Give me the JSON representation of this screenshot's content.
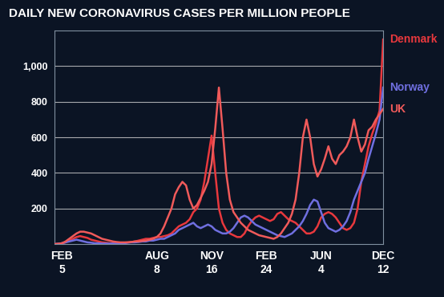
{
  "chart_data": {
    "type": "line",
    "title": "DAILY NEW CORONAVIRUS CASES PER MILLION PEOPLE",
    "categories": [
      null,
      null,
      "FEB\n5",
      null,
      null,
      null,
      null,
      null,
      null,
      null,
      null,
      null,
      null,
      null,
      null,
      null,
      null,
      null,
      null,
      null,
      null,
      null,
      null,
      null,
      null,
      null,
      null,
      null,
      "AUG\n8",
      null,
      null,
      null,
      null,
      null,
      null,
      null,
      null,
      null,
      null,
      null,
      null,
      null,
      null,
      "NOV\n16",
      null,
      null,
      null,
      null,
      null,
      null,
      null,
      null,
      null,
      null,
      null,
      null,
      null,
      null,
      "FEB\n24",
      null,
      null,
      null,
      null,
      null,
      null,
      null,
      null,
      null,
      null,
      null,
      null,
      null,
      null,
      "JUN\n4",
      null,
      null,
      null,
      null,
      null,
      null,
      null,
      null,
      null,
      null,
      null,
      null,
      null,
      null,
      null,
      null,
      "DEC\n12"
    ],
    "series": [
      {
        "name": "Denmark",
        "color": "#e8383d",
        "values": [
          0,
          2,
          5,
          10,
          20,
          30,
          40,
          45,
          40,
          35,
          25,
          20,
          15,
          10,
          8,
          5,
          5,
          5,
          5,
          8,
          10,
          12,
          15,
          20,
          25,
          30,
          30,
          35,
          40,
          40,
          45,
          50,
          60,
          80,
          100,
          110,
          120,
          140,
          180,
          200,
          250,
          350,
          480,
          610,
          400,
          200,
          120,
          80,
          60,
          50,
          40,
          40,
          60,
          100,
          130,
          150,
          160,
          150,
          140,
          130,
          140,
          170,
          180,
          160,
          140,
          130,
          120,
          100,
          80,
          60,
          60,
          70,
          100,
          150,
          170,
          180,
          170,
          150,
          120,
          90,
          80,
          90,
          120,
          200,
          350,
          450,
          550,
          620,
          680,
          750,
          1150
        ]
      },
      {
        "name": "Norway",
        "color": "#6f6fe0",
        "values": [
          0,
          2,
          5,
          10,
          15,
          20,
          25,
          20,
          15,
          10,
          8,
          5,
          5,
          3,
          3,
          3,
          3,
          3,
          5,
          5,
          8,
          10,
          10,
          12,
          15,
          15,
          20,
          20,
          25,
          30,
          30,
          40,
          50,
          60,
          80,
          90,
          100,
          110,
          120,
          100,
          90,
          100,
          110,
          100,
          80,
          70,
          60,
          60,
          70,
          90,
          120,
          150,
          160,
          150,
          130,
          110,
          100,
          90,
          80,
          70,
          60,
          50,
          45,
          40,
          50,
          60,
          80,
          100,
          130,
          170,
          220,
          250,
          240,
          180,
          120,
          90,
          80,
          70,
          80,
          100,
          130,
          180,
          250,
          300,
          350,
          400,
          480,
          550,
          620,
          700,
          880
        ]
      },
      {
        "name": "UK",
        "color": "#f05a5a",
        "values": [
          0,
          2,
          5,
          15,
          30,
          45,
          60,
          70,
          70,
          65,
          60,
          50,
          40,
          30,
          25,
          20,
          15,
          12,
          10,
          10,
          10,
          12,
          15,
          15,
          18,
          20,
          25,
          30,
          40,
          60,
          100,
          150,
          200,
          280,
          320,
          350,
          330,
          250,
          200,
          220,
          260,
          300,
          350,
          450,
          650,
          880,
          650,
          400,
          250,
          180,
          150,
          120,
          100,
          80,
          70,
          60,
          50,
          45,
          40,
          35,
          30,
          40,
          60,
          90,
          120,
          170,
          250,
          400,
          600,
          700,
          600,
          450,
          380,
          420,
          480,
          550,
          480,
          450,
          500,
          520,
          550,
          600,
          700,
          600,
          520,
          560,
          640,
          660,
          700,
          730,
          760
        ]
      }
    ],
    "ylim": [
      0,
      1200
    ],
    "yticks": [
      200,
      400,
      600,
      800,
      {
        "value": 1000,
        "label": "1,000"
      }
    ],
    "grid": true
  }
}
